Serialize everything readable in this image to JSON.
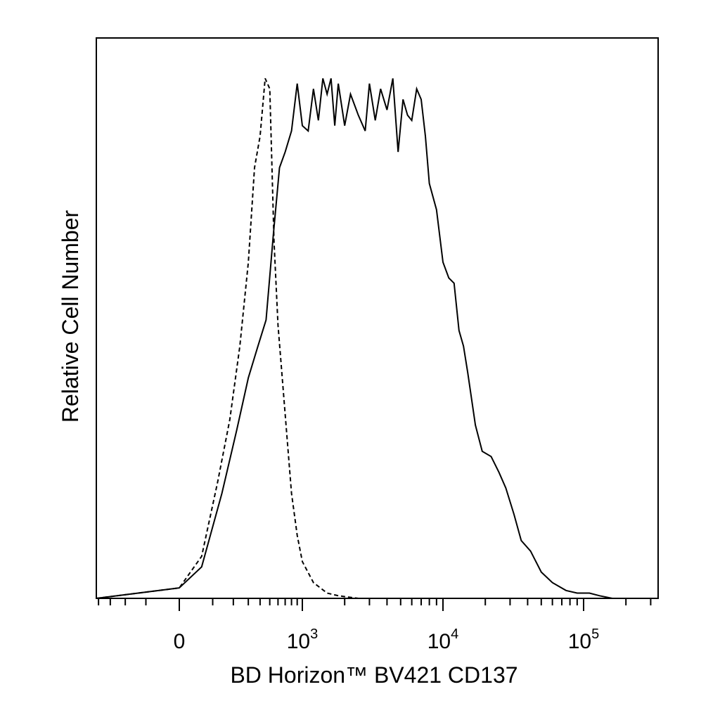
{
  "chart_data": {
    "type": "area",
    "title": "",
    "xlabel": "BD Horizon™ BV421 CD137",
    "ylabel": "Relative Cell Number",
    "x_scale": "biexponential",
    "xlim": [
      -500,
      200000
    ],
    "ylim": [
      0,
      100
    ],
    "grid": false,
    "legend": "none",
    "x_tick_labels": [
      {
        "value": 0,
        "base": "0",
        "exp": ""
      },
      {
        "value": 1000,
        "base": "10",
        "exp": "3"
      },
      {
        "value": 10000,
        "base": "10",
        "exp": "4"
      },
      {
        "value": 100000,
        "base": "10",
        "exp": "5"
      }
    ],
    "colors": {
      "line": "#000000",
      "frame": "#000000",
      "background": "#ffffff"
    },
    "series": [
      {
        "style": "dashed",
        "x": [
          -500,
          0,
          60,
          120,
          180,
          240,
          300,
          350,
          400,
          450,
          500,
          550,
          600,
          700,
          800,
          900,
          1000,
          1200,
          1500,
          1800,
          2500,
          5000,
          10000,
          50000,
          200000
        ],
        "y": [
          0,
          2,
          8,
          22,
          34,
          48,
          64,
          82,
          88,
          99,
          97,
          68,
          52,
          35,
          20,
          12,
          7,
          3,
          1,
          0.5,
          0,
          0,
          0,
          0,
          0
        ]
      },
      {
        "style": "solid",
        "x": [
          -500,
          0,
          60,
          140,
          220,
          300,
          380,
          460,
          540,
          620,
          700,
          800,
          900,
          1000,
          1100,
          1200,
          1300,
          1400,
          1500,
          1600,
          1700,
          1800,
          2000,
          2200,
          2500,
          2800,
          3000,
          3300,
          3600,
          4000,
          4400,
          4800,
          5200,
          5600,
          6000,
          6500,
          7000,
          7500,
          8000,
          9000,
          10000,
          11000,
          12000,
          13000,
          14000,
          15000,
          17000,
          19000,
          22000,
          25000,
          28000,
          32000,
          36000,
          42000,
          50000,
          60000,
          75000,
          90000,
          110000,
          130000,
          160000,
          200000
        ],
        "y": [
          0,
          2,
          6,
          20,
          32,
          42,
          48,
          53,
          69,
          82,
          85,
          89,
          98,
          90,
          89,
          97,
          91,
          99,
          96,
          99,
          90,
          98,
          90,
          96,
          92,
          89,
          98,
          91,
          97,
          93,
          99,
          85,
          95,
          92,
          91,
          97,
          95,
          88,
          79,
          74,
          64,
          61,
          60,
          51,
          48,
          43,
          33,
          28,
          27,
          24,
          21,
          16,
          11,
          9,
          5,
          3,
          1.5,
          1,
          1,
          0.5,
          0,
          0
        ]
      }
    ]
  }
}
